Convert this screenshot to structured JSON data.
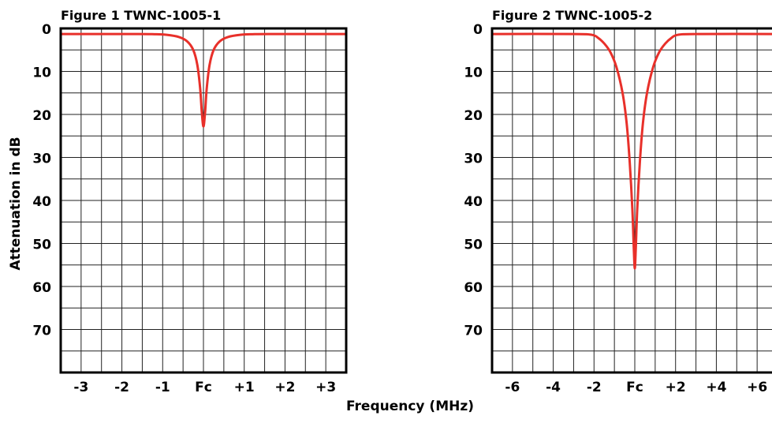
{
  "shared": {
    "ylabel": "Attenuation in dB",
    "xlabel": "Frequency (MHz)"
  },
  "chart_data": [
    {
      "type": "line",
      "title": "Figure 1   TWNC-1005-1",
      "ylim": [
        0,
        80
      ],
      "y_inverted": true,
      "xlim": [
        -3.5,
        3.5
      ],
      "grid": true,
      "yticks": [
        0,
        10,
        20,
        30,
        40,
        50,
        60,
        70
      ],
      "ytick_labels": [
        "0",
        "10",
        "20",
        "30",
        "40",
        "50",
        "60",
        "70"
      ],
      "xticks": [
        -3,
        -2,
        -1,
        0,
        1,
        2,
        3
      ],
      "xtick_labels": [
        "-3",
        "-2",
        "-1",
        "Fc",
        "+1",
        "+2",
        "+3"
      ],
      "line_color": "#e8302a",
      "series": [
        {
          "x": [
            -3.5,
            -1.6,
            -1.2,
            -0.9,
            -0.6,
            -0.4,
            -0.25,
            -0.15,
            -0.08,
            -0.04,
            0,
            0.04,
            0.08,
            0.15,
            0.25,
            0.4,
            0.6,
            0.9,
            1.2,
            1.6,
            3.5
          ],
          "y": [
            1.3,
            1.3,
            1.35,
            1.5,
            2.0,
            3.0,
            5.0,
            8.5,
            14.0,
            19.5,
            22.8,
            19.5,
            14.0,
            8.5,
            5.0,
            3.0,
            2.0,
            1.5,
            1.35,
            1.3,
            1.3
          ]
        }
      ]
    },
    {
      "type": "line",
      "title": "Figure 2   TWNC-1005-2",
      "ylim": [
        0,
        80
      ],
      "y_inverted": true,
      "xlim": [
        -7,
        7
      ],
      "grid": true,
      "yticks": [
        0,
        10,
        20,
        30,
        40,
        50,
        60,
        70
      ],
      "ytick_labels": [
        "0",
        "10",
        "20",
        "30",
        "40",
        "50",
        "60",
        "70"
      ],
      "xticks": [
        -6,
        -4,
        -2,
        0,
        2,
        4,
        6
      ],
      "xtick_labels": [
        "-6",
        "-4",
        "-2",
        "Fc",
        "+2",
        "+4",
        "+6"
      ],
      "line_color": "#e8302a",
      "series": [
        {
          "x": [
            -7,
            -3.0,
            -2.1,
            -1.8,
            -1.5,
            -1.2,
            -0.9,
            -0.6,
            -0.4,
            -0.25,
            -0.12,
            -0.05,
            0,
            0.05,
            0.12,
            0.25,
            0.4,
            0.6,
            0.9,
            1.2,
            1.5,
            1.8,
            2.1,
            3.0,
            7
          ],
          "y": [
            1.3,
            1.3,
            1.5,
            2.2,
            3.5,
            5.5,
            9.0,
            15.0,
            22.0,
            31.0,
            42.0,
            51.0,
            55.8,
            51.0,
            42.0,
            31.0,
            22.0,
            15.0,
            9.0,
            5.5,
            3.5,
            2.2,
            1.5,
            1.3,
            1.3
          ]
        }
      ]
    }
  ]
}
